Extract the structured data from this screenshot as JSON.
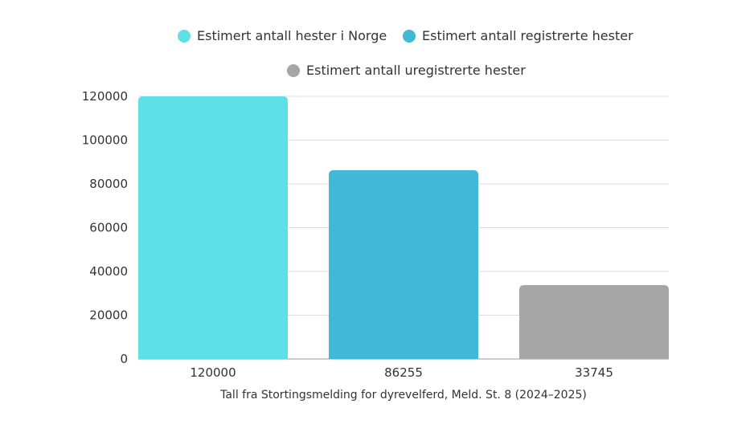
{
  "chart_data": {
    "type": "bar",
    "categories": [
      "120000",
      "86255",
      "33745"
    ],
    "series": [
      {
        "name": "Estimert antall hester i Norge",
        "values": [
          120000,
          null,
          null
        ],
        "color": "#5ee1e6"
      },
      {
        "name": "Estimert antall registrerte hester",
        "values": [
          null,
          86255,
          null
        ],
        "color": "#41b8d5"
      },
      {
        "name": "Estimert antall uregistrerte hester",
        "values": [
          null,
          null,
          33745
        ],
        "color": "#a6a6a6"
      }
    ],
    "values": [
      120000,
      86255,
      33745
    ],
    "title": "",
    "xlabel": "Tall fra Stortingsmelding for dyrevelferd, Meld. St. 8 (2024–2025)",
    "ylabel": "",
    "ylim": [
      0,
      120000
    ],
    "yticks": [
      "0",
      "20000",
      "40000",
      "60000",
      "80000",
      "100000",
      "120000"
    ],
    "grid": true,
    "legend_position": "top"
  }
}
